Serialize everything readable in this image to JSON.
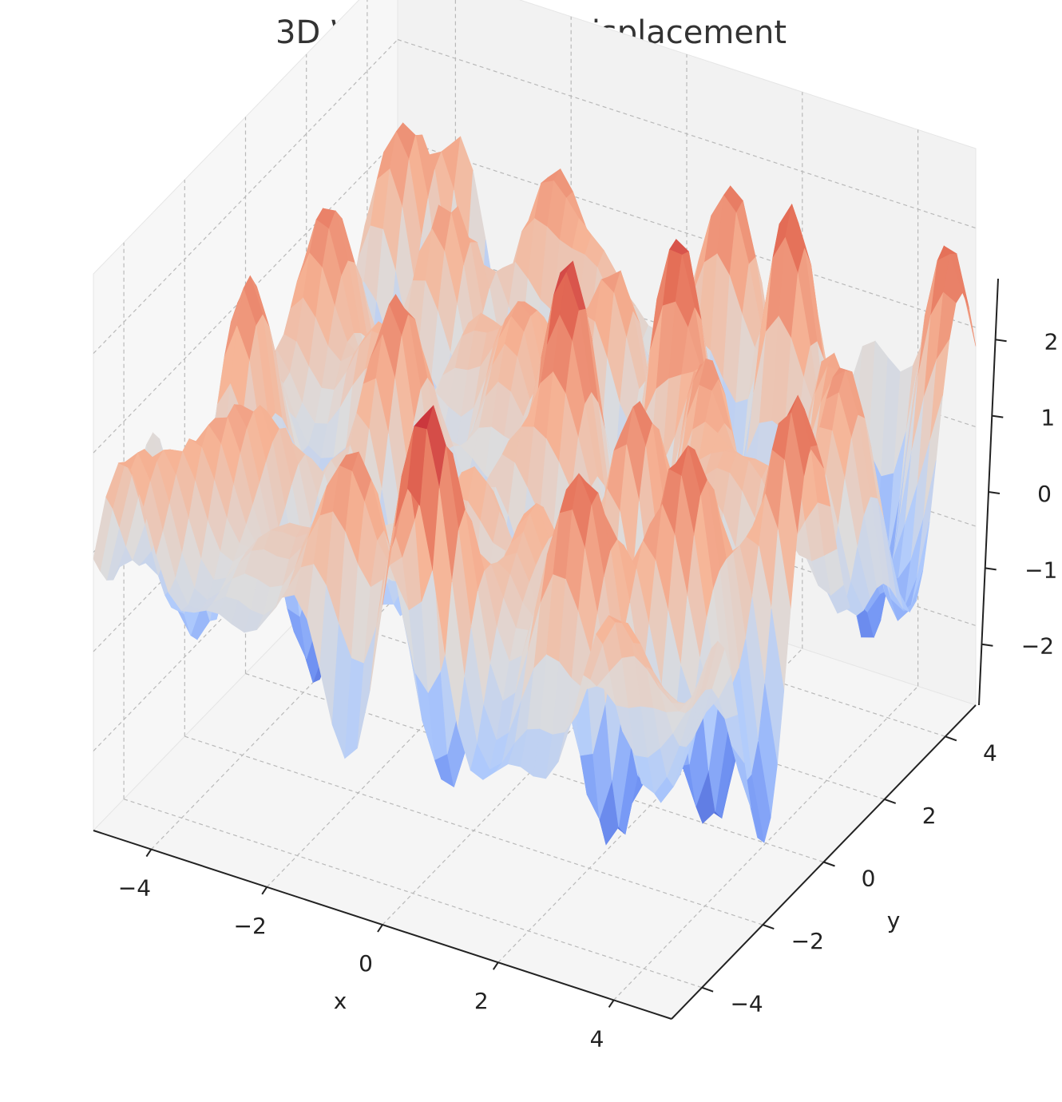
{
  "chart_data": {
    "type": "surface",
    "title": "3D Water Surface Displacement",
    "xlabel": "x",
    "ylabel": "y",
    "zlabel": "",
    "xlim": [
      -5,
      5
    ],
    "ylim": [
      -5,
      5
    ],
    "zlim": [
      -2.8,
      2.8
    ],
    "x_ticks": [
      "−4",
      "−2",
      "0",
      "2",
      "4"
    ],
    "y_ticks": [
      "−4",
      "−2",
      "0",
      "2",
      "4"
    ],
    "z_ticks": [
      "−2",
      "−1",
      "0",
      "1",
      "2"
    ],
    "colormap": "coolwarm",
    "colormap_stops": [
      "#3b4cc0",
      "#7396f5",
      "#b0cbfc",
      "#dddcdc",
      "#f6b597",
      "#e57058",
      "#b40426"
    ],
    "grid": true,
    "pane_colors": [
      "#f2f2f2",
      "#f7f7f7",
      "#f5f5f5"
    ]
  }
}
